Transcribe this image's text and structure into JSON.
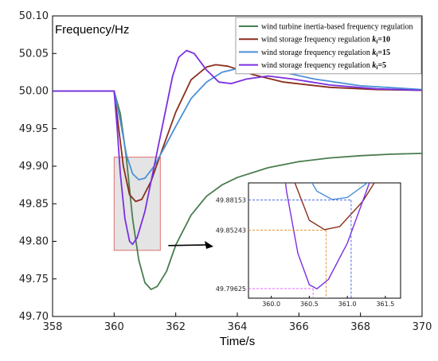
{
  "chart_data": {
    "type": "line",
    "title": "",
    "ylabel": "Frequency/Hz",
    "xlabel": "Time/s",
    "xlim": [
      358,
      370
    ],
    "ylim": [
      49.7,
      50.1
    ],
    "x_ticks": [
      "358",
      "360",
      "362",
      "364",
      "366",
      "368",
      "370"
    ],
    "y_ticks": [
      "49.70",
      "49.75",
      "49.80",
      "49.85",
      "49.90",
      "49.95",
      "50.00",
      "50.05",
      "50.10"
    ],
    "legend": {
      "placement": "top-right"
    },
    "grid": false,
    "series": [
      {
        "name": "wind turbine inertia-based frequency regulation",
        "color": "#4a7d4f",
        "points": [
          [
            358,
            50.0
          ],
          [
            360,
            50.0
          ],
          [
            360.2,
            49.97
          ],
          [
            360.4,
            49.91
          ],
          [
            360.6,
            49.83
          ],
          [
            360.8,
            49.775
          ],
          [
            361.0,
            49.745
          ],
          [
            361.2,
            49.736
          ],
          [
            361.4,
            49.74
          ],
          [
            361.7,
            49.76
          ],
          [
            362.0,
            49.795
          ],
          [
            362.5,
            49.835
          ],
          [
            363.0,
            49.86
          ],
          [
            363.5,
            49.875
          ],
          [
            364.0,
            49.885
          ],
          [
            365.0,
            49.898
          ],
          [
            366.0,
            49.906
          ],
          [
            367.0,
            49.911
          ],
          [
            368.0,
            49.914
          ],
          [
            369.0,
            49.916
          ],
          [
            370.0,
            49.917
          ]
        ]
      },
      {
        "name_main": "wind storage frequency regulation ",
        "name_k": "k",
        "name_sub": "i",
        "name_value": "=10",
        "color": "#8b2d1c",
        "points": [
          [
            358,
            50.0
          ],
          [
            360,
            50.0
          ],
          [
            360.15,
            49.95
          ],
          [
            360.3,
            49.9
          ],
          [
            360.5,
            49.862
          ],
          [
            360.7,
            49.853
          ],
          [
            360.9,
            49.856
          ],
          [
            361.2,
            49.88
          ],
          [
            361.5,
            49.915
          ],
          [
            362.0,
            49.972
          ],
          [
            362.5,
            50.015
          ],
          [
            363.0,
            50.032
          ],
          [
            363.3,
            50.035
          ],
          [
            363.7,
            50.033
          ],
          [
            364.5,
            50.022
          ],
          [
            365.5,
            50.012
          ],
          [
            367.0,
            50.005
          ],
          [
            368.5,
            50.002
          ],
          [
            370.0,
            50.001
          ]
        ]
      },
      {
        "name_main": "wind storage frequency regulation ",
        "name_k": "k",
        "name_sub": "i",
        "name_value": "=15",
        "color": "#4a90d9",
        "points": [
          [
            358,
            50.0
          ],
          [
            360,
            50.0
          ],
          [
            360.2,
            49.96
          ],
          [
            360.4,
            49.915
          ],
          [
            360.6,
            49.89
          ],
          [
            360.8,
            49.882
          ],
          [
            361.0,
            49.884
          ],
          [
            361.3,
            49.9
          ],
          [
            361.7,
            49.93
          ],
          [
            362.0,
            49.953
          ],
          [
            362.5,
            49.99
          ],
          [
            363.0,
            50.012
          ],
          [
            363.5,
            50.025
          ],
          [
            364.0,
            50.03
          ],
          [
            364.5,
            50.03
          ],
          [
            365.5,
            50.025
          ],
          [
            366.5,
            50.016
          ],
          [
            368.0,
            50.007
          ],
          [
            370.0,
            50.002
          ]
        ]
      },
      {
        "name_main": "wind storage frequency regulation ",
        "name_k": "k",
        "name_sub": "i",
        "name_value": "=5",
        "color": "#7b2fe0",
        "points": [
          [
            358,
            50.0
          ],
          [
            360,
            50.0
          ],
          [
            360.1,
            49.95
          ],
          [
            360.2,
            49.89
          ],
          [
            360.35,
            49.83
          ],
          [
            360.5,
            49.8
          ],
          [
            360.6,
            49.796
          ],
          [
            360.75,
            49.805
          ],
          [
            361.0,
            49.84
          ],
          [
            361.3,
            49.9
          ],
          [
            361.6,
            49.96
          ],
          [
            361.9,
            50.02
          ],
          [
            362.1,
            50.045
          ],
          [
            362.35,
            50.054
          ],
          [
            362.6,
            50.05
          ],
          [
            363.0,
            50.028
          ],
          [
            363.4,
            50.012
          ],
          [
            363.8,
            50.01
          ],
          [
            364.3,
            50.016
          ],
          [
            365.0,
            50.02
          ],
          [
            365.8,
            50.016
          ],
          [
            367.0,
            50.008
          ],
          [
            368.5,
            50.003
          ],
          [
            370.0,
            50.001
          ]
        ]
      }
    ],
    "zoom_region": {
      "x": [
        360,
        361.5
      ],
      "y": [
        49.788,
        49.912
      ]
    },
    "inset": {
      "xlim": [
        359.7,
        361.7
      ],
      "ylim": [
        49.787,
        49.898
      ],
      "x_ticks": [
        "360.0",
        "360.5",
        "361.0",
        "361.5"
      ],
      "annotations": [
        {
          "label": "49.88153",
          "value": 49.88153,
          "x": 361.05,
          "color": "#3b5bdb"
        },
        {
          "label": "49.85243",
          "value": 49.85243,
          "x": 360.72,
          "color": "#e08a1e"
        },
        {
          "label": "49.79625",
          "value": 49.79625,
          "x": 360.55,
          "color": "#e056fd"
        }
      ]
    }
  }
}
